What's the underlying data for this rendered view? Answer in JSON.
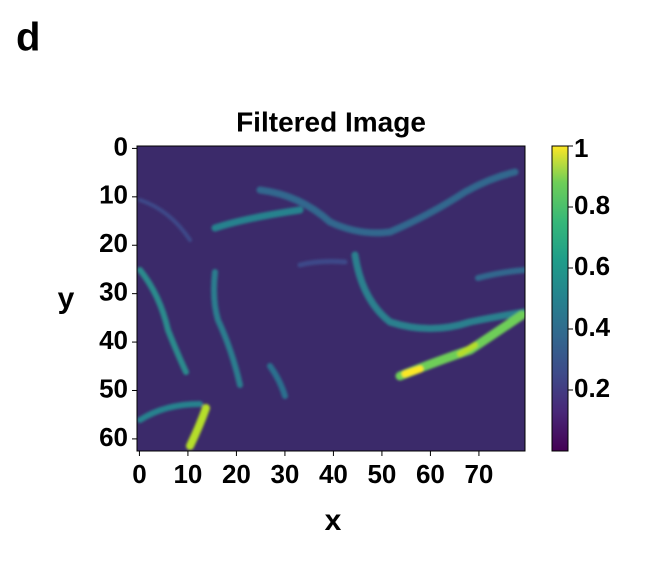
{
  "panel_label": "d",
  "chart_data": {
    "type": "heatmap",
    "title": "Filtered Image",
    "x_label": "x",
    "y_label": "y",
    "colormap": "viridis",
    "xlim": [
      -0.5,
      79.5
    ],
    "ylim": [
      62.5,
      -0.5
    ],
    "xticks": [
      0,
      10,
      20,
      30,
      40,
      50,
      60,
      70
    ],
    "yticks": [
      0,
      10,
      20,
      30,
      40,
      50,
      60
    ],
    "colorbar": {
      "lim": [
        0,
        1
      ],
      "ticks": [
        0.2,
        0.4,
        0.6,
        0.8,
        1
      ]
    }
  }
}
